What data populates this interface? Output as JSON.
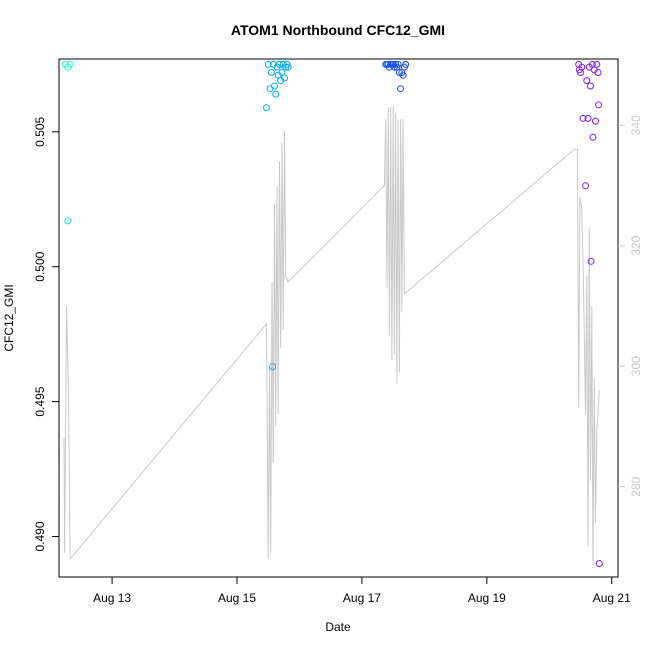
{
  "chart_data": {
    "type": "scatter",
    "title": "ATOM1 Northbound CFC12_GMI",
    "xlabel": "Date",
    "ylabel": "CFC12_GMI",
    "ylabel_right": "",
    "x_unit": "days in August",
    "xlim": [
      12.15,
      21.1
    ],
    "ylim": [
      0.4885,
      0.5077
    ],
    "ylim_right": [
      265,
      351
    ],
    "x_ticks": [
      {
        "value": 13,
        "label": "Aug 13"
      },
      {
        "value": 15,
        "label": "Aug 15"
      },
      {
        "value": 17,
        "label": "Aug 17"
      },
      {
        "value": 19,
        "label": "Aug 19"
      },
      {
        "value": 21,
        "label": "Aug 21"
      }
    ],
    "y_ticks": [
      {
        "value": 0.49,
        "label": "0.490"
      },
      {
        "value": 0.495,
        "label": "0.495"
      },
      {
        "value": 0.5,
        "label": "0.500"
      },
      {
        "value": 0.505,
        "label": "0.505"
      }
    ],
    "y_ticks_right": [
      {
        "value": 280,
        "label": "280"
      },
      {
        "value": 300,
        "label": "300"
      },
      {
        "value": 320,
        "label": "320"
      },
      {
        "value": 340,
        "label": "340"
      }
    ],
    "grid": false,
    "legend": "none",
    "colors": {
      "line": "#c8c8c8",
      "axis": "#000000",
      "right_axis": "#c8c8c8",
      "point_gradient": [
        "#33ffcc",
        "#00ccff",
        "#1a3fff",
        "#8c1aff"
      ]
    },
    "series": [
      {
        "role": "points",
        "values": [
          [
            12.25,
            0.5075
          ],
          [
            12.29,
            0.5074
          ],
          [
            12.33,
            0.5075
          ],
          [
            12.29,
            0.5017
          ],
          [
            15.47,
            0.5059
          ],
          [
            15.5,
            0.5075
          ],
          [
            15.53,
            0.5066
          ],
          [
            15.55,
            0.5072
          ],
          [
            15.57,
            0.4963
          ],
          [
            15.58,
            0.5075
          ],
          [
            15.6,
            0.5067
          ],
          [
            15.62,
            0.5064
          ],
          [
            15.64,
            0.5074
          ],
          [
            15.66,
            0.5071
          ],
          [
            15.68,
            0.5075
          ],
          [
            15.7,
            0.5069
          ],
          [
            15.72,
            0.5072
          ],
          [
            15.74,
            0.5075
          ],
          [
            15.76,
            0.507
          ],
          [
            15.78,
            0.5074
          ],
          [
            15.8,
            0.5075
          ],
          [
            15.82,
            0.5074
          ],
          [
            17.38,
            0.5075
          ],
          [
            17.4,
            0.5075
          ],
          [
            17.42,
            0.5075
          ],
          [
            17.44,
            0.5074
          ],
          [
            17.46,
            0.5075
          ],
          [
            17.48,
            0.5075
          ],
          [
            17.5,
            0.5075
          ],
          [
            17.52,
            0.5074
          ],
          [
            17.54,
            0.5075
          ],
          [
            17.56,
            0.5074
          ],
          [
            17.58,
            0.5075
          ],
          [
            17.6,
            0.5072
          ],
          [
            17.62,
            0.5066
          ],
          [
            17.64,
            0.5072
          ],
          [
            17.66,
            0.5071
          ],
          [
            17.68,
            0.5074
          ],
          [
            17.7,
            0.5075
          ],
          [
            20.47,
            0.5075
          ],
          [
            20.48,
            0.5073
          ],
          [
            20.5,
            0.5072
          ],
          [
            20.52,
            0.5074
          ],
          [
            20.54,
            0.5055
          ],
          [
            20.58,
            0.503
          ],
          [
            20.6,
            0.5069
          ],
          [
            20.62,
            0.5055
          ],
          [
            20.64,
            0.5074
          ],
          [
            20.66,
            0.5067
          ],
          [
            20.67,
            0.5002
          ],
          [
            20.69,
            0.5075
          ],
          [
            20.7,
            0.5048
          ],
          [
            20.72,
            0.5073
          ],
          [
            20.74,
            0.5054
          ],
          [
            20.76,
            0.5075
          ],
          [
            20.78,
            0.5072
          ],
          [
            20.79,
            0.506
          ],
          [
            20.8,
            0.489
          ]
        ]
      },
      {
        "role": "line_right_axis",
        "values": [
          [
            12.23,
            288
          ],
          [
            12.24,
            269
          ],
          [
            12.27,
            310
          ],
          [
            12.3,
            296
          ],
          [
            12.33,
            268
          ],
          [
            15.47,
            307
          ],
          [
            15.5,
            268
          ],
          [
            15.52,
            300
          ],
          [
            15.54,
            269
          ],
          [
            15.56,
            314
          ],
          [
            15.58,
            284
          ],
          [
            15.6,
            327
          ],
          [
            15.62,
            290
          ],
          [
            15.64,
            330
          ],
          [
            15.66,
            292
          ],
          [
            15.68,
            334
          ],
          [
            15.7,
            303
          ],
          [
            15.72,
            337
          ],
          [
            15.74,
            306
          ],
          [
            15.76,
            339
          ],
          [
            15.78,
            315
          ],
          [
            15.82,
            314
          ],
          [
            17.36,
            330
          ],
          [
            17.38,
            341
          ],
          [
            17.4,
            313
          ],
          [
            17.42,
            343
          ],
          [
            17.44,
            305
          ],
          [
            17.46,
            343
          ],
          [
            17.48,
            301
          ],
          [
            17.5,
            343
          ],
          [
            17.52,
            302
          ],
          [
            17.54,
            342
          ],
          [
            17.56,
            297
          ],
          [
            17.58,
            341
          ],
          [
            17.6,
            299
          ],
          [
            17.62,
            341
          ],
          [
            17.64,
            309
          ],
          [
            17.66,
            341
          ],
          [
            17.68,
            312
          ],
          [
            20.4,
            336
          ],
          [
            20.45,
            336
          ],
          [
            20.47,
            293
          ],
          [
            20.49,
            328
          ],
          [
            20.52,
            326
          ],
          [
            20.55,
            313
          ],
          [
            20.58,
            292
          ],
          [
            20.6,
            315
          ],
          [
            20.62,
            270
          ],
          [
            20.64,
            323
          ],
          [
            20.66,
            281
          ],
          [
            20.68,
            310
          ],
          [
            20.7,
            267
          ],
          [
            20.72,
            298
          ],
          [
            20.74,
            274
          ],
          [
            20.76,
            289
          ],
          [
            20.8,
            296
          ]
        ]
      }
    ]
  }
}
